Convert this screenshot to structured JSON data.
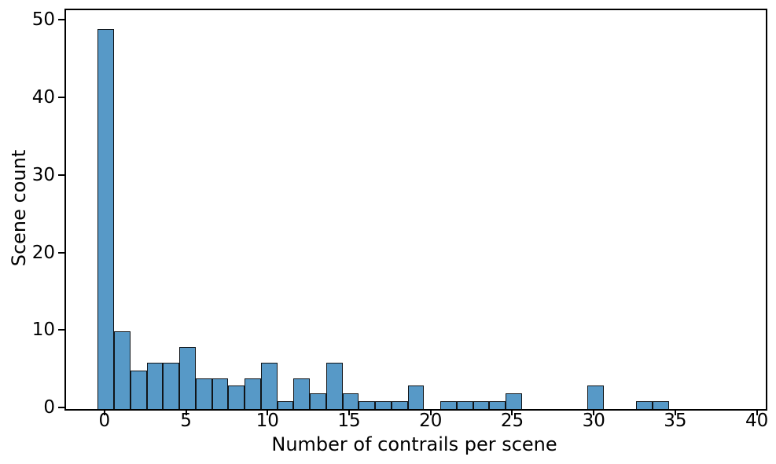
{
  "chart_data": {
    "type": "bar",
    "subtype": "histogram",
    "title": "",
    "xlabel": "Number of contrails per scene",
    "ylabel": "Scene count",
    "x": [
      0,
      1,
      2,
      3,
      4,
      5,
      6,
      7,
      8,
      9,
      10,
      11,
      12,
      13,
      14,
      15,
      16,
      17,
      18,
      19,
      20,
      21,
      22,
      23,
      24,
      25,
      26,
      27,
      28,
      29,
      30,
      31,
      32,
      33,
      34,
      35,
      36,
      37,
      38
    ],
    "values": [
      49,
      10,
      5,
      6,
      6,
      8,
      4,
      4,
      3,
      4,
      6,
      1,
      4,
      2,
      6,
      2,
      1,
      1,
      1,
      3,
      0,
      1,
      1,
      1,
      1,
      2,
      0,
      0,
      0,
      0,
      3,
      0,
      0,
      1,
      1,
      0,
      0,
      0,
      0
    ],
    "bin_width": 1,
    "xticks": [
      0,
      5,
      10,
      15,
      20,
      25,
      30,
      35,
      40
    ],
    "yticks": [
      0,
      10,
      20,
      30,
      40,
      50
    ],
    "xlim": [
      -2.45,
      40.45
    ],
    "ylim": [
      0,
      51.45
    ],
    "grid": false,
    "legend": "none",
    "bar_color": "#5799c7",
    "bar_edge_color": "#101418",
    "axis_color": "#000000"
  }
}
